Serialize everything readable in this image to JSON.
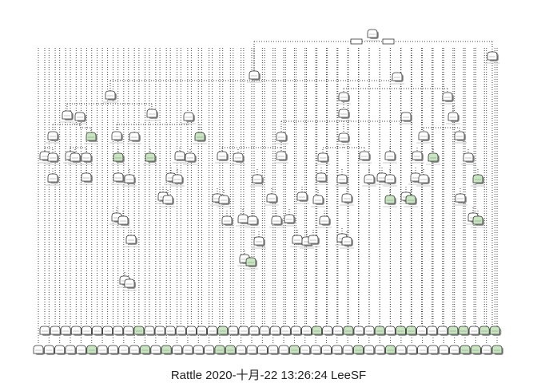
{
  "figure": {
    "caption": "Rattle 2020-十月-22 13:26:24 LeeSF",
    "colors": {
      "node_fill_white": "#ffffff",
      "node_fill_green": "#c8e6c0",
      "node_stroke": "#333333",
      "shadow": "#9a9a9a",
      "edge": "#444444"
    },
    "tree": {
      "kind": "decision-tree",
      "text_labels_legible": false,
      "split_labels": "small unreadable text beneath each internal node"
    }
  }
}
